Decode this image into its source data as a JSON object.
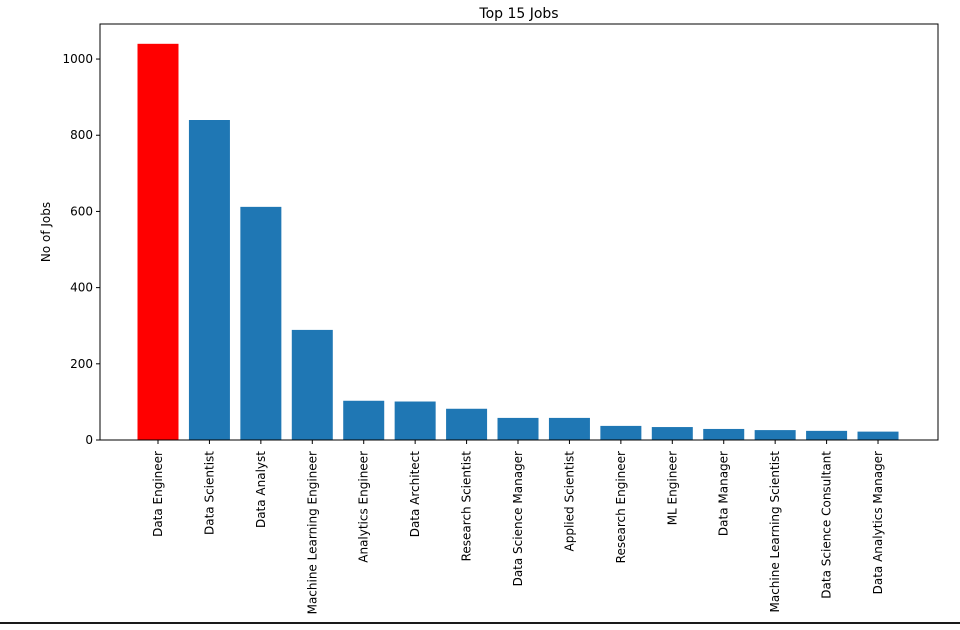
{
  "chart_data": {
    "type": "bar",
    "title": "Top 15 Jobs",
    "xlabel": "",
    "ylabel": "No of Jobs",
    "categories": [
      "Data Engineer",
      "Data Scientist",
      "Data Analyst",
      "Machine Learning Engineer",
      "Analytics Engineer",
      "Data Architect",
      "Research Scientist",
      "Data Science Manager",
      "Applied Scientist",
      "Research Engineer",
      "ML Engineer",
      "Data Manager",
      "Machine Learning Scientist",
      "Data Science Consultant",
      "Data Analytics Manager"
    ],
    "values": [
      1040,
      840,
      612,
      289,
      103,
      101,
      82,
      58,
      58,
      37,
      34,
      29,
      26,
      24,
      22
    ],
    "bar_colors": [
      "#ff0000",
      "#1f77b4",
      "#1f77b4",
      "#1f77b4",
      "#1f77b4",
      "#1f77b4",
      "#1f77b4",
      "#1f77b4",
      "#1f77b4",
      "#1f77b4",
      "#1f77b4",
      "#1f77b4",
      "#1f77b4",
      "#1f77b4",
      "#1f77b4"
    ],
    "ylim": [
      0,
      1092
    ],
    "yticks": [
      0,
      200,
      400,
      600,
      800,
      1000
    ],
    "grid": false,
    "legend": "none"
  }
}
